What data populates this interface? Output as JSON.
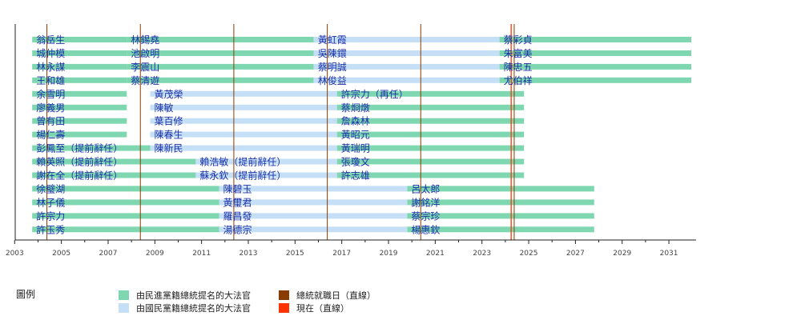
{
  "chart_data": {
    "type": "timeline",
    "xlim": [
      2003,
      2032
    ],
    "x_ticks": [
      2003,
      2005,
      2007,
      2009,
      2011,
      2013,
      2015,
      2017,
      2019,
      2021,
      2023,
      2025,
      2027,
      2029,
      2031
    ],
    "inaugurations": [
      2004.38,
      2008.38,
      2012.38,
      2016.38,
      2020.38,
      2024.38
    ],
    "today": 2024.25,
    "series_colors": {
      "dpp": "#7fd7b1",
      "kmt": "#c5e0f6",
      "inauguration": "#8a3b00",
      "today": "#ff3300"
    },
    "rows": [
      [
        {
          "start": 2003.75,
          "end": 2007.8,
          "party": "dpp",
          "name": "翁岳生"
        },
        {
          "start": 2007.8,
          "end": 2015.8,
          "party": "dpp",
          "name": "林錫堯"
        },
        {
          "start": 2015.8,
          "end": 2023.75,
          "party": "kmt",
          "name": "黃虹霞"
        },
        {
          "start": 2023.75,
          "end": 2032,
          "party": "dpp",
          "name": "蔡彩貞"
        }
      ],
      [
        {
          "start": 2003.75,
          "end": 2007.8,
          "party": "dpp",
          "name": "城仲模"
        },
        {
          "start": 2007.8,
          "end": 2015.8,
          "party": "dpp",
          "name": "池啟明"
        },
        {
          "start": 2015.8,
          "end": 2023.75,
          "party": "kmt",
          "name": "吳陳鐶"
        },
        {
          "start": 2023.75,
          "end": 2032,
          "party": "dpp",
          "name": "朱富美"
        }
      ],
      [
        {
          "start": 2003.75,
          "end": 2007.8,
          "party": "dpp",
          "name": "林永謀"
        },
        {
          "start": 2007.8,
          "end": 2015.8,
          "party": "dpp",
          "name": "李震山"
        },
        {
          "start": 2015.8,
          "end": 2023.75,
          "party": "kmt",
          "name": "蔡明誠"
        },
        {
          "start": 2023.75,
          "end": 2032,
          "party": "dpp",
          "name": "陳忠五"
        }
      ],
      [
        {
          "start": 2003.75,
          "end": 2007.8,
          "party": "dpp",
          "name": "王和雄"
        },
        {
          "start": 2007.8,
          "end": 2015.8,
          "party": "dpp",
          "name": "蔡清遊"
        },
        {
          "start": 2015.8,
          "end": 2023.75,
          "party": "kmt",
          "name": "林俊益"
        },
        {
          "start": 2023.75,
          "end": 2032,
          "party": "dpp",
          "name": "尤伯祥"
        }
      ],
      [
        {
          "start": 2003.75,
          "end": 2007.8,
          "party": "dpp",
          "name": "余雪明"
        },
        {
          "start": 2008.8,
          "end": 2016.8,
          "party": "kmt",
          "name": "黃茂榮"
        },
        {
          "start": 2016.8,
          "end": 2024.8,
          "party": "dpp",
          "name": "許宗力（再任）"
        }
      ],
      [
        {
          "start": 2003.75,
          "end": 2007.8,
          "party": "dpp",
          "name": "廖義男"
        },
        {
          "start": 2008.8,
          "end": 2016.8,
          "party": "kmt",
          "name": "陳敏"
        },
        {
          "start": 2016.8,
          "end": 2024.8,
          "party": "dpp",
          "name": "蔡烱燉"
        }
      ],
      [
        {
          "start": 2003.75,
          "end": 2007.8,
          "party": "dpp",
          "name": "曾有田"
        },
        {
          "start": 2008.8,
          "end": 2016.8,
          "party": "kmt",
          "name": "葉百修"
        },
        {
          "start": 2016.8,
          "end": 2024.8,
          "party": "dpp",
          "name": "詹森林"
        }
      ],
      [
        {
          "start": 2003.75,
          "end": 2007.8,
          "party": "dpp",
          "name": "楊仁壽"
        },
        {
          "start": 2008.8,
          "end": 2016.8,
          "party": "kmt",
          "name": "陳春生"
        },
        {
          "start": 2016.8,
          "end": 2024.8,
          "party": "dpp",
          "name": "黃昭元"
        }
      ],
      [
        {
          "start": 2003.75,
          "end": 2008.8,
          "party": "dpp",
          "name": "彭鳳至（提前辭任）"
        },
        {
          "start": 2008.8,
          "end": 2016.8,
          "party": "kmt",
          "name": "陳新民"
        },
        {
          "start": 2016.8,
          "end": 2024.8,
          "party": "dpp",
          "name": "黃瑞明"
        }
      ],
      [
        {
          "start": 2003.75,
          "end": 2010.75,
          "party": "dpp",
          "name": "賴英照（提前辭任）"
        },
        {
          "start": 2010.75,
          "end": 2016.8,
          "party": "kmt",
          "name": "賴浩敏（提前辭任）"
        },
        {
          "start": 2016.8,
          "end": 2024.8,
          "party": "dpp",
          "name": "張瓊文"
        }
      ],
      [
        {
          "start": 2003.75,
          "end": 2010.75,
          "party": "dpp",
          "name": "謝在全（提前辭任）"
        },
        {
          "start": 2010.75,
          "end": 2016.8,
          "party": "kmt",
          "name": "蘇永欽（提前辭任）"
        },
        {
          "start": 2016.8,
          "end": 2024.8,
          "party": "dpp",
          "name": "許志雄"
        }
      ],
      [
        {
          "start": 2003.75,
          "end": 2011.75,
          "party": "dpp",
          "name": "徐璧湖"
        },
        {
          "start": 2011.75,
          "end": 2019.8,
          "party": "kmt",
          "name": "陳碧玉"
        },
        {
          "start": 2019.8,
          "end": 2027.8,
          "party": "dpp",
          "name": "呂太郎"
        }
      ],
      [
        {
          "start": 2003.75,
          "end": 2011.75,
          "party": "dpp",
          "name": "林子儀"
        },
        {
          "start": 2011.75,
          "end": 2019.8,
          "party": "kmt",
          "name": "黃璽君"
        },
        {
          "start": 2019.8,
          "end": 2027.8,
          "party": "dpp",
          "name": "謝銘洋"
        }
      ],
      [
        {
          "start": 2003.75,
          "end": 2011.75,
          "party": "dpp",
          "name": "許宗力"
        },
        {
          "start": 2011.75,
          "end": 2019.8,
          "party": "kmt",
          "name": "羅昌發"
        },
        {
          "start": 2019.8,
          "end": 2027.8,
          "party": "dpp",
          "name": "蔡宗珍"
        }
      ],
      [
        {
          "start": 2003.75,
          "end": 2011.75,
          "party": "dpp",
          "name": "許玉秀"
        },
        {
          "start": 2011.75,
          "end": 2019.8,
          "party": "kmt",
          "name": "湯德宗"
        },
        {
          "start": 2019.8,
          "end": 2027.8,
          "party": "dpp",
          "name": "楊惠欽"
        }
      ]
    ],
    "legend": {
      "title": "圖例",
      "items": [
        {
          "label": "由民進黨籍總統提名的大法官",
          "color": "#7fd7b1"
        },
        {
          "label": "由國民黨籍總統提名的大法官",
          "color": "#c5e0f6"
        },
        {
          "label": "總統就職日（直線）",
          "color": "#8a3b00"
        },
        {
          "label": "現在（直線）",
          "color": "#ff3300"
        }
      ]
    }
  }
}
